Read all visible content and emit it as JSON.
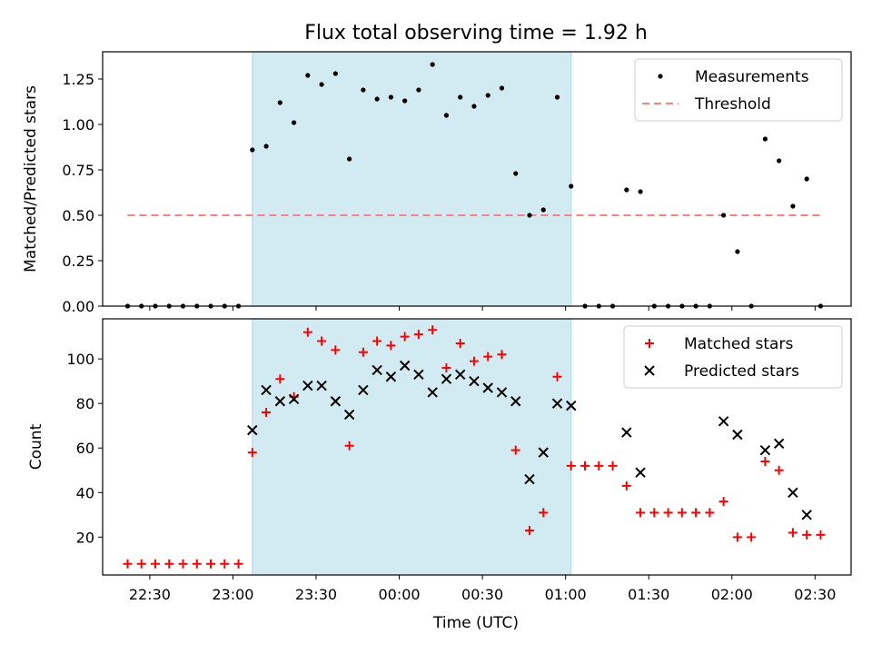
{
  "figure_title": "Flux total observing time = 1.92 h",
  "xlabel": "Time (UTC)",
  "colors": {
    "highlight": "#add8e6",
    "matched": "#ff0000",
    "predicted": "#000000",
    "threshold": "#ff7f7f",
    "measurements": "#000000"
  },
  "chart_data": [
    {
      "type": "scatter",
      "panel": "top",
      "ylabel": "Matched/Predicted stars",
      "xlim": [
        "22:13",
        "02:43"
      ],
      "ylim": [
        0,
        1.4
      ],
      "yticks": [
        0.0,
        0.25,
        0.5,
        0.75,
        1.0,
        1.25
      ],
      "ytick_labels": [
        "0.00",
        "0.25",
        "0.50",
        "0.75",
        "1.00",
        "1.25"
      ],
      "highlight": {
        "start": "23:07",
        "end": "01:02"
      },
      "legend": [
        "Measurements",
        "Threshold"
      ],
      "legend_loc": "upper right",
      "threshold": {
        "name": "Threshold",
        "y": 0.5,
        "x": [
          "22:22",
          "02:32"
        ]
      },
      "series": [
        {
          "name": "Measurements",
          "marker": "dot",
          "x": [
            "22:22",
            "22:27",
            "22:32",
            "22:37",
            "22:42",
            "22:47",
            "22:52",
            "22:57",
            "23:02",
            "23:07",
            "23:12",
            "23:17",
            "23:22",
            "23:27",
            "23:32",
            "23:37",
            "23:42",
            "23:47",
            "23:52",
            "23:57",
            "00:02",
            "00:07",
            "00:12",
            "00:17",
            "00:22",
            "00:27",
            "00:32",
            "00:37",
            "00:42",
            "00:47",
            "00:52",
            "00:57",
            "01:02",
            "01:07",
            "01:12",
            "01:17",
            "01:22",
            "01:27",
            "01:32",
            "01:37",
            "01:42",
            "01:47",
            "01:52",
            "01:57",
            "02:02",
            "02:07",
            "02:12",
            "02:17",
            "02:22",
            "02:27",
            "02:32"
          ],
          "y": [
            0,
            0,
            0,
            0,
            0,
            0,
            0,
            0,
            0,
            0.86,
            0.88,
            1.12,
            1.01,
            1.27,
            1.22,
            1.28,
            0.81,
            1.19,
            1.14,
            1.15,
            1.13,
            1.19,
            1.33,
            1.05,
            1.15,
            1.1,
            1.16,
            1.2,
            0.73,
            0.5,
            0.53,
            1.15,
            0.66,
            0,
            0,
            0,
            0.64,
            0.63,
            0,
            0,
            0,
            0,
            0,
            0.5,
            0.3,
            0,
            0.92,
            0.8,
            0.55,
            0.7,
            0
          ]
        }
      ]
    },
    {
      "type": "scatter",
      "panel": "bottom",
      "ylabel": "Count",
      "xlim": [
        "22:13",
        "02:43"
      ],
      "ylim": [
        3,
        118
      ],
      "yticks": [
        20,
        40,
        60,
        80,
        100
      ],
      "ytick_labels": [
        "20",
        "40",
        "60",
        "80",
        "100"
      ],
      "xticks": [
        "22:30",
        "23:00",
        "23:30",
        "00:00",
        "00:30",
        "01:00",
        "01:30",
        "02:00",
        "02:30"
      ],
      "highlight": {
        "start": "23:07",
        "end": "01:02"
      },
      "legend": [
        "Matched stars",
        "Predicted stars"
      ],
      "legend_loc": "upper right",
      "series": [
        {
          "name": "Matched stars",
          "marker": "plus",
          "x": [
            "22:22",
            "22:27",
            "22:32",
            "22:37",
            "22:42",
            "22:47",
            "22:52",
            "22:57",
            "23:02",
            "23:07",
            "23:12",
            "23:17",
            "23:22",
            "23:27",
            "23:32",
            "23:37",
            "23:42",
            "23:47",
            "23:52",
            "23:57",
            "00:02",
            "00:07",
            "00:12",
            "00:17",
            "00:22",
            "00:27",
            "00:32",
            "00:37",
            "00:42",
            "00:47",
            "00:52",
            "00:57",
            "01:02",
            "01:07",
            "01:12",
            "01:17",
            "01:22",
            "01:27",
            "01:32",
            "01:37",
            "01:42",
            "01:47",
            "01:52",
            "01:57",
            "02:02",
            "02:07",
            "02:12",
            "02:17",
            "02:22",
            "02:27",
            "02:32"
          ],
          "y": [
            8,
            8,
            8,
            8,
            8,
            8,
            8,
            8,
            8,
            58,
            76,
            91,
            83,
            112,
            108,
            104,
            61,
            103,
            108,
            106,
            110,
            111,
            113,
            96,
            107,
            99,
            101,
            102,
            59,
            23,
            31,
            92,
            52,
            52,
            52,
            52,
            43,
            31,
            31,
            31,
            31,
            31,
            31,
            36,
            20,
            20,
            54,
            50,
            22,
            21,
            21
          ]
        },
        {
          "name": "Predicted stars",
          "marker": "x",
          "x": [
            "23:07",
            "23:12",
            "23:17",
            "23:22",
            "23:27",
            "23:32",
            "23:37",
            "23:42",
            "23:47",
            "23:52",
            "23:57",
            "00:02",
            "00:07",
            "00:12",
            "00:17",
            "00:22",
            "00:27",
            "00:32",
            "00:37",
            "00:42",
            "00:47",
            "00:52",
            "00:57",
            "01:02",
            "01:22",
            "01:27",
            "01:57",
            "02:02",
            "02:12",
            "02:17",
            "02:22",
            "02:27"
          ],
          "y": [
            68,
            86,
            81,
            82,
            88,
            88,
            81,
            75,
            86,
            95,
            92,
            97,
            93,
            85,
            91,
            93,
            90,
            87,
            85,
            81,
            46,
            58,
            80,
            79,
            67,
            49,
            72,
            66,
            59,
            62,
            40,
            30
          ]
        }
      ]
    }
  ]
}
